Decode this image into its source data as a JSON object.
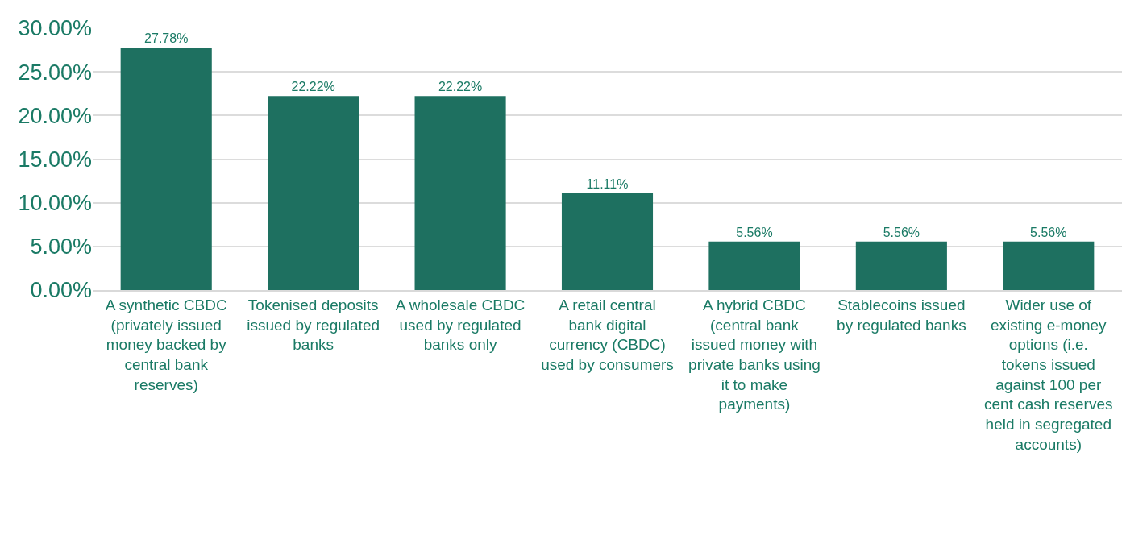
{
  "chart_data": {
    "type": "bar",
    "categories": [
      "A synthetic CBDC (privately issued money backed by central bank reserves)",
      "Tokenised deposits issued by regulated banks",
      "A wholesale CBDC used by regulated banks only",
      "A retail central bank digital currency (CBDC) used by consumers",
      "A hybrid CBDC (central bank issued money with private banks using it to make payments)",
      "Stablecoins issued by regulated banks",
      "Wider use of existing e-money options (i.e. tokens issued against 100 per cent cash reserves held in segregated accounts)"
    ],
    "values": [
      27.78,
      22.22,
      22.22,
      11.11,
      5.56,
      5.56,
      5.56
    ],
    "value_labels": [
      "27.78%",
      "22.22%",
      "22.22%",
      "11.11%",
      "5.56%",
      "5.56%",
      "5.56%"
    ],
    "color": "#1e7060",
    "ylim": [
      0,
      30
    ],
    "yticks": [
      {
        "value": 0,
        "label": "0.00%"
      },
      {
        "value": 5,
        "label": "5.00%"
      },
      {
        "value": 10,
        "label": "10.00%"
      },
      {
        "value": 15,
        "label": "15.00%"
      },
      {
        "value": 20,
        "label": "20.00%"
      },
      {
        "value": 25,
        "label": "25.00%"
      },
      {
        "value": 30,
        "label": "30.00%"
      }
    ],
    "grid": "y"
  }
}
